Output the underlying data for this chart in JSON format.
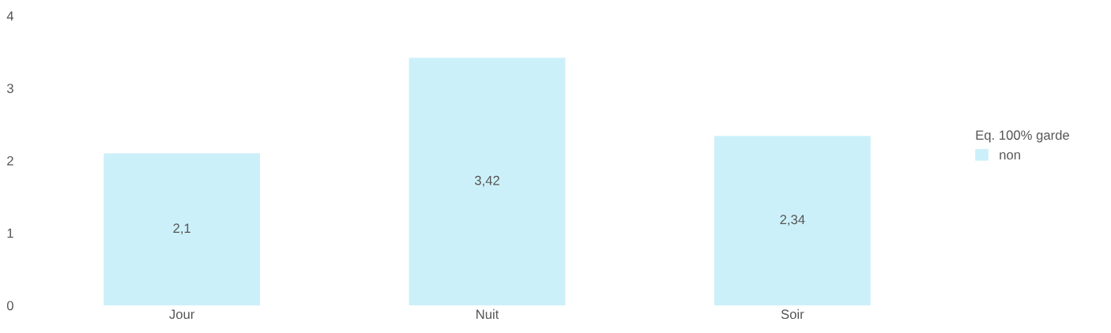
{
  "chart_data": {
    "type": "bar",
    "categories": [
      "Jour",
      "Nuit",
      "Soir"
    ],
    "series": [
      {
        "name": "non",
        "color": "#ccf0f9",
        "values": [
          2.1,
          3.42,
          2.34
        ],
        "value_labels": [
          "2,1",
          "3,42",
          "2,34"
        ]
      }
    ],
    "legend_title": "Eq. 100% garde",
    "legend": "right",
    "ylim": [
      0,
      4
    ],
    "yticks": [
      0,
      1,
      2,
      3,
      4
    ],
    "grid": false
  }
}
